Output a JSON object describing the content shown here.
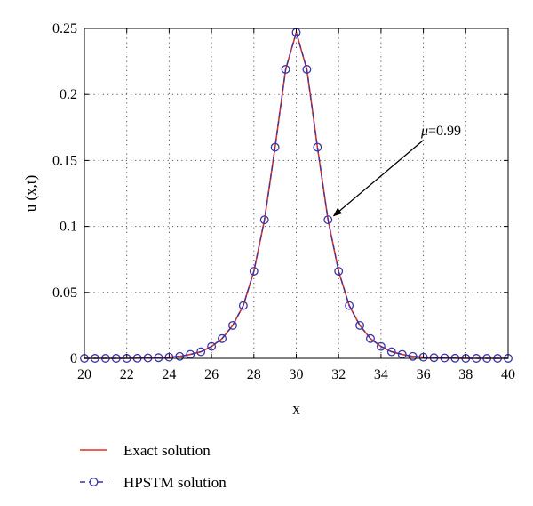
{
  "chart_data": {
    "type": "line",
    "xlabel": "x",
    "ylabel": "u (x,t)",
    "xlim": [
      20,
      40
    ],
    "ylim": [
      0,
      0.25
    ],
    "xticks": [
      20,
      22,
      24,
      26,
      28,
      30,
      32,
      34,
      36,
      38,
      40
    ],
    "yticks": [
      0,
      0.05,
      0.1,
      0.15,
      0.2,
      0.25
    ],
    "xtick_labels": [
      "20",
      "22",
      "24",
      "26",
      "28",
      "30",
      "32",
      "34",
      "36",
      "38",
      "40"
    ],
    "ytick_labels": [
      "0",
      "0.05",
      "0.1",
      "0.15",
      "0.2",
      "0.25"
    ],
    "grid": true,
    "legend_placement": "bottom-left-outside",
    "annotation": {
      "prefix": "μ",
      "text": "=0.99",
      "x": 31.6,
      "y": 0.106
    },
    "series": [
      {
        "name": "Exact solution",
        "color": "#e0301e",
        "style": "solid",
        "x": [
          20,
          20.5,
          21,
          21.5,
          22,
          22.5,
          23,
          23.5,
          24,
          24.5,
          25,
          25.5,
          26,
          26.5,
          27,
          27.5,
          28,
          28.5,
          29,
          29.5,
          30,
          30.5,
          31,
          31.5,
          32,
          32.5,
          33,
          33.5,
          34,
          34.5,
          35,
          35.5,
          36,
          36.5,
          37,
          37.5,
          38,
          38.5,
          39,
          39.5,
          40
        ],
        "y": [
          0,
          0,
          0,
          0,
          0,
          0.0001,
          0.0003,
          0.0005,
          0.0009,
          0.0015,
          0.003,
          0.005,
          0.009,
          0.015,
          0.025,
          0.04,
          0.066,
          0.105,
          0.16,
          0.219,
          0.247,
          0.219,
          0.16,
          0.105,
          0.066,
          0.04,
          0.025,
          0.015,
          0.009,
          0.005,
          0.003,
          0.0015,
          0.0009,
          0.0005,
          0.0003,
          0.0001,
          0,
          0,
          0,
          0,
          0
        ]
      },
      {
        "name": "HPSTM solution",
        "color": "#3a35a8",
        "style": "dashed",
        "marker": "circle",
        "x": [
          20,
          20.5,
          21,
          21.5,
          22,
          22.5,
          23,
          23.5,
          24,
          24.5,
          25,
          25.5,
          26,
          26.5,
          27,
          27.5,
          28,
          28.5,
          29,
          29.5,
          30,
          30.5,
          31,
          31.5,
          32,
          32.5,
          33,
          33.5,
          34,
          34.5,
          35,
          35.5,
          36,
          36.5,
          37,
          37.5,
          38,
          38.5,
          39,
          39.5,
          40
        ],
        "y": [
          0,
          0,
          0,
          0,
          0,
          0.0001,
          0.0003,
          0.0005,
          0.0009,
          0.0015,
          0.003,
          0.005,
          0.009,
          0.015,
          0.025,
          0.04,
          0.066,
          0.105,
          0.16,
          0.219,
          0.247,
          0.219,
          0.16,
          0.105,
          0.066,
          0.04,
          0.025,
          0.015,
          0.009,
          0.005,
          0.003,
          0.0015,
          0.0009,
          0.0005,
          0.0003,
          0.0001,
          0,
          0,
          0,
          0,
          0
        ]
      }
    ]
  }
}
